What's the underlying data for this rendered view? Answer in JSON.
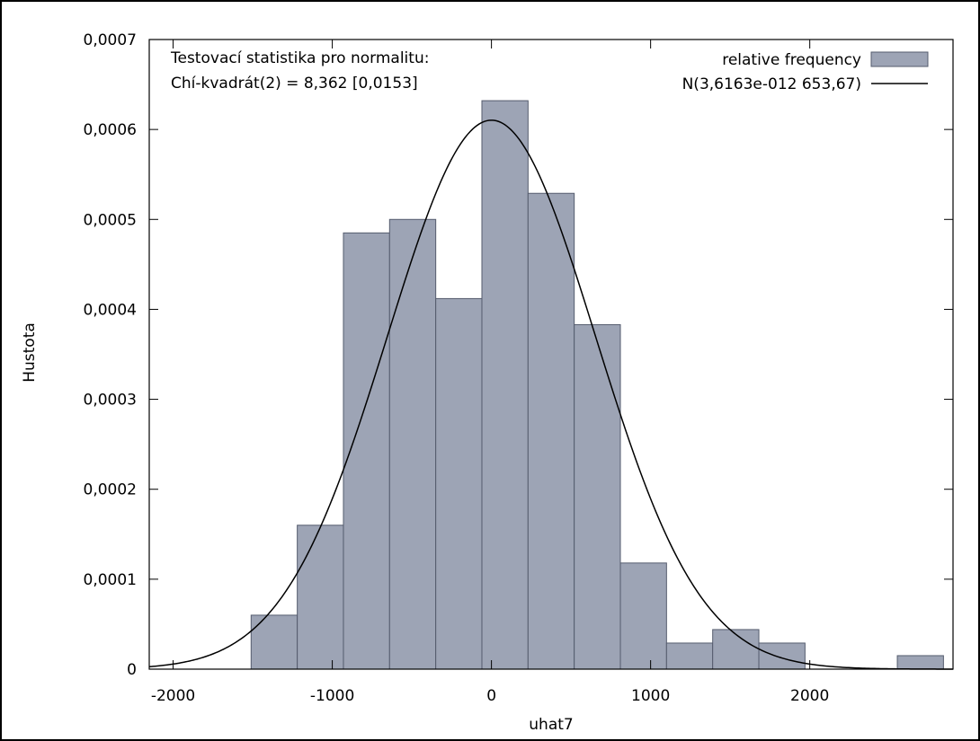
{
  "chart_data": {
    "type": "bar",
    "xlabel": "uhat7",
    "ylabel": "Hustota",
    "xlim": [
      -2150,
      2900
    ],
    "ylim": [
      0,
      0.0007
    ],
    "x_ticks": [
      -2000,
      -1000,
      0,
      1000,
      2000
    ],
    "x_tick_labels": [
      "-2000",
      "-1000",
      "0",
      "1000",
      "2000"
    ],
    "y_ticks": [
      0,
      0.0001,
      0.0002,
      0.0003,
      0.0004,
      0.0005,
      0.0006,
      0.0007
    ],
    "y_tick_labels": [
      "0",
      "0,0001",
      "0,0002",
      "0,0003",
      "0,0004",
      "0,0005",
      "0,0006",
      "0,0007"
    ],
    "annotation": {
      "line1": "Testovací statistika pro normalitu:",
      "line2": "Chí-kvadrát(2) = 8,362 [0,0153]"
    },
    "series": [
      {
        "name": "relative frequency",
        "kind": "histogram",
        "color": "#9da4b5",
        "edge_color": "#555c6e",
        "bins": [
          {
            "x0": -1510,
            "x1": -1220,
            "value": 6e-05
          },
          {
            "x0": -1220,
            "x1": -930,
            "value": 0.00016
          },
          {
            "x0": -930,
            "x1": -640,
            "value": 0.000485
          },
          {
            "x0": -640,
            "x1": -350,
            "value": 0.0005
          },
          {
            "x0": -350,
            "x1": -60,
            "value": 0.000412
          },
          {
            "x0": -60,
            "x1": 230,
            "value": 0.000632
          },
          {
            "x0": 230,
            "x1": 520,
            "value": 0.000529
          },
          {
            "x0": 520,
            "x1": 810,
            "value": 0.000383
          },
          {
            "x0": 810,
            "x1": 1100,
            "value": 0.000118
          },
          {
            "x0": 1100,
            "x1": 1390,
            "value": 2.9e-05
          },
          {
            "x0": 1390,
            "x1": 1680,
            "value": 4.4e-05
          },
          {
            "x0": 1680,
            "x1": 1970,
            "value": 2.9e-05
          },
          {
            "x0": 1970,
            "x1": 2260,
            "value": 0
          },
          {
            "x0": 2260,
            "x1": 2550,
            "value": 0
          },
          {
            "x0": 2550,
            "x1": 2840,
            "value": 1.5e-05
          }
        ]
      },
      {
        "name": "N(3,6163e-012 653,67)",
        "kind": "line",
        "color": "#000000",
        "mean": 0,
        "sd": 653.67
      }
    ],
    "grid": false,
    "legend_position": "top-right"
  }
}
